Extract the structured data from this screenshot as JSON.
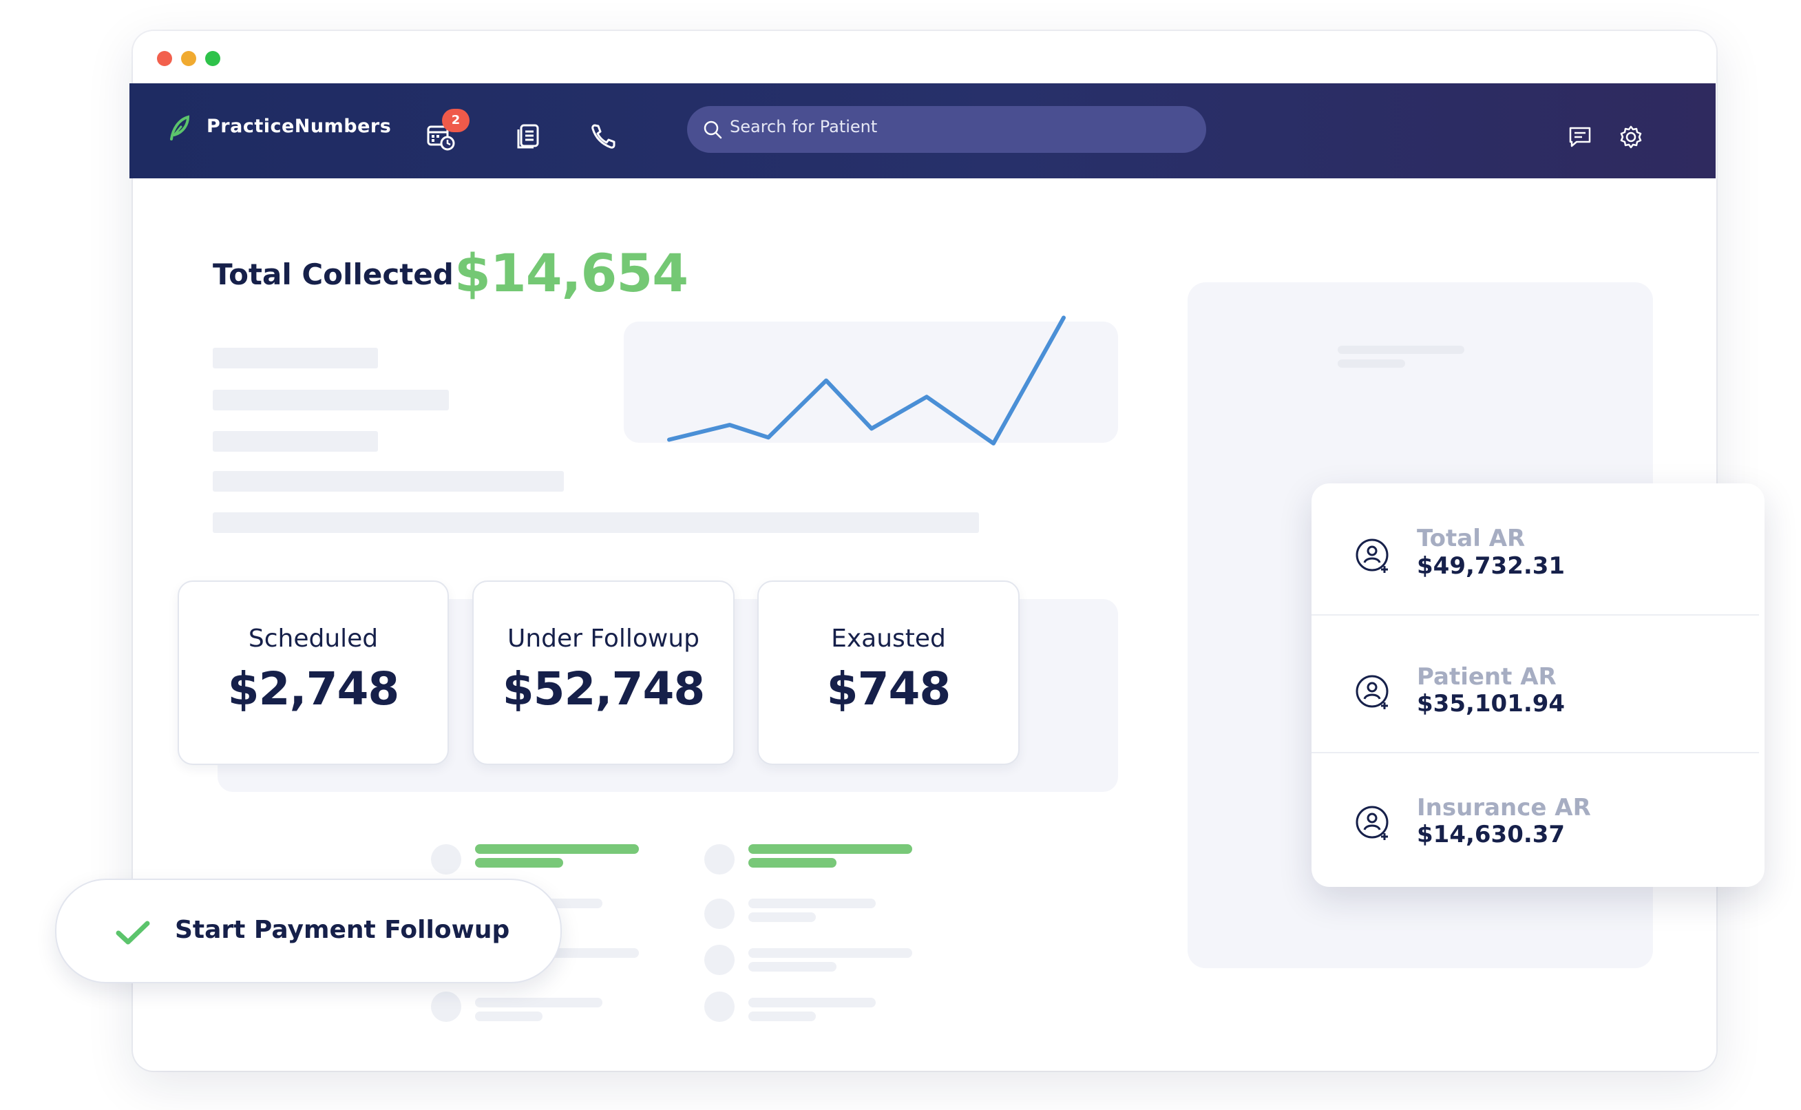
{
  "window": {
    "controls": [
      "close",
      "minimize",
      "zoom"
    ]
  },
  "navbar": {
    "brand": "PracticeNumbers",
    "logo_icon": "feather-logo-icon",
    "calendar_badge": "2",
    "icons": [
      "calendar-clock-icon",
      "documents-icon",
      "phone-icon",
      "chat-icon",
      "gear-icon"
    ],
    "search_placeholder": "Search for Patient"
  },
  "summary": {
    "total_label": "Total Collected",
    "total_value": "$14,654"
  },
  "chart_data": {
    "type": "line",
    "title": "",
    "xlabel": "",
    "ylabel": "",
    "x": [
      1,
      2,
      3,
      4,
      5,
      6,
      7,
      8
    ],
    "series": [
      {
        "values": [
          2,
          4,
          2.3,
          10,
          3.5,
          7.8,
          1.5,
          18.5
        ]
      }
    ],
    "ylim": [
      0,
      19
    ],
    "grid": false
  },
  "cards": [
    {
      "label": "Scheduled",
      "value": "$2,748"
    },
    {
      "label": "Under Followup",
      "value": "$52,748"
    },
    {
      "label": "Exausted",
      "value": "$748"
    }
  ],
  "followup_button": {
    "label": "Start Payment Followup",
    "icon": "checkmark-icon",
    "accent": "#5cc46c"
  },
  "ar": [
    {
      "label": "Total AR",
      "value": "$49,732.31",
      "icon": "patient-add-icon"
    },
    {
      "label": "Patient AR",
      "value": "$35,101.94",
      "icon": "patient-add-icon"
    },
    {
      "label": "Insurance AR",
      "value": "$14,630.37",
      "icon": "patient-add-icon"
    }
  ],
  "colors": {
    "navbar": "#27306a",
    "accent_green": "#74c874",
    "line": "#4a8fd6",
    "text_dark": "#16204a",
    "label_gray": "#a6adc2"
  }
}
